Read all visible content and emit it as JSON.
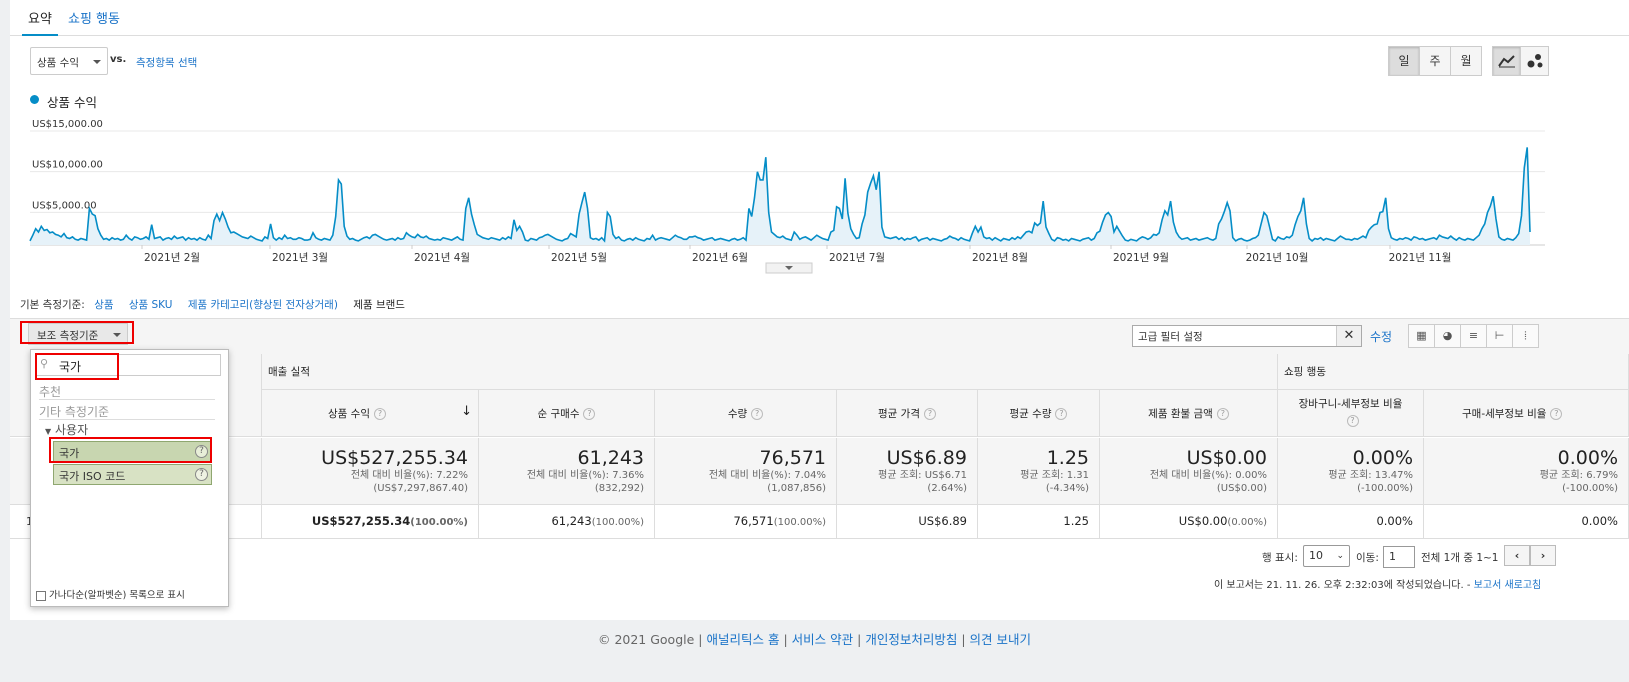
{
  "tabs": {
    "summary": "요약",
    "shopping": "쇼핑 행동"
  },
  "metric": {
    "selected": "상품 수익",
    "vs": "vs.",
    "choose": "측정항목 선택"
  },
  "period_buttons": [
    "일",
    "주",
    "월"
  ],
  "chart_data": {
    "type": "line",
    "series": [
      {
        "name": "상품 수익",
        "color": "#058dc7",
        "values": [
          500,
          1200,
          2000,
          1600,
          2300,
          1800,
          1900,
          1500,
          1600,
          1300,
          1200,
          1000,
          1400,
          900,
          800,
          1000,
          700,
          600,
          800,
          700,
          600,
          4500,
          3800,
          3600,
          2000,
          1200,
          700,
          800,
          600,
          900,
          700,
          800,
          600,
          700,
          1200,
          800,
          600,
          1000,
          900,
          700,
          800,
          1000,
          700,
          2500,
          800,
          900,
          1000,
          600,
          800,
          900,
          700,
          1100,
          800,
          900,
          1000,
          600,
          900,
          700,
          800,
          600,
          900,
          700,
          600,
          1200,
          800,
          3000,
          3800,
          3000,
          4000,
          3200,
          2200,
          1500,
          1600,
          1400,
          1200,
          1000,
          900,
          800,
          1100,
          900,
          700,
          600,
          500,
          1000,
          800,
          2600,
          900,
          600,
          900,
          700,
          1200,
          800,
          900,
          700,
          700,
          900,
          800,
          600,
          600,
          700,
          1500,
          900,
          700,
          600,
          800,
          700,
          600,
          1200,
          3500,
          8000,
          7500,
          2300,
          1100,
          700,
          800,
          600,
          500,
          700,
          900,
          1000,
          800,
          1200,
          1300,
          1100,
          900,
          700,
          600,
          700,
          800,
          600,
          900,
          700,
          800,
          1500,
          1200,
          1000,
          900,
          1300,
          1000,
          900,
          1100,
          800,
          700,
          600,
          700,
          600,
          900,
          800,
          700,
          600,
          800,
          1000,
          700,
          600,
          4500,
          5800,
          3800,
          2500,
          1300,
          1100,
          900,
          800,
          700,
          900,
          800,
          700,
          600,
          900,
          700,
          1000,
          800,
          3100,
          1800,
          2300,
          1600,
          600,
          500,
          800,
          700,
          600,
          900,
          1000,
          1200,
          1300,
          1100,
          900,
          700,
          600,
          500,
          700,
          800,
          1400,
          1200,
          1000,
          3800,
          5200,
          6500,
          4500,
          900,
          700,
          800,
          600,
          900,
          500,
          4000,
          3500,
          1300,
          800,
          1000,
          600,
          500,
          700,
          800,
          600,
          900,
          700,
          600,
          500,
          800,
          700,
          1200,
          600,
          800,
          900,
          800,
          700,
          600,
          900,
          1200,
          1000,
          900,
          700,
          700,
          1000,
          1000,
          1100,
          900,
          800,
          600,
          700,
          800,
          900,
          600,
          700,
          800,
          700,
          600,
          500,
          700,
          800,
          600,
          700,
          900,
          600,
          4500,
          3500,
          5800,
          9000,
          8000,
          8000,
          10800,
          4000,
          1600,
          1300,
          1000,
          900,
          1100,
          800,
          700,
          600,
          1600,
          1200,
          700,
          900,
          1000,
          800,
          600,
          900,
          1200,
          1000,
          800,
          700,
          600,
          1600,
          1800,
          4700,
          4500,
          3200,
          8200,
          3900,
          2000,
          1300,
          800,
          900,
          2600,
          3700,
          6500,
          7600,
          8500,
          6800,
          9000,
          2200,
          1000,
          900,
          800,
          900,
          1000,
          700,
          900,
          600,
          800,
          700,
          900,
          1000,
          500,
          700,
          800,
          900,
          600,
          800,
          700,
          600,
          500,
          700,
          800,
          1100,
          900,
          800,
          600,
          900,
          700,
          600,
          500,
          1500,
          2300,
          1600,
          2200,
          1000,
          800,
          900,
          600,
          900,
          700,
          500,
          800,
          700,
          600,
          900,
          700,
          1000,
          800,
          1200,
          1600,
          1700,
          1500,
          2700,
          2400,
          2700,
          5400,
          2200,
          1400,
          700,
          500,
          900,
          800,
          600,
          700,
          500,
          800,
          700,
          600,
          500,
          700,
          800,
          900,
          600,
          800,
          1500,
          1700,
          2800,
          3700,
          4000,
          3500,
          1600,
          2300,
          1700,
          1100,
          600,
          500,
          700,
          600,
          500,
          800,
          1000,
          900,
          700,
          900,
          1300,
          1200,
          1500,
          3100,
          4200,
          3700,
          5400,
          2800,
          1600,
          1000,
          700,
          800,
          900,
          600,
          700,
          800,
          600,
          700,
          800,
          900,
          700,
          600,
          800,
          2600,
          3200,
          4100,
          5200,
          4200,
          900,
          500,
          700,
          800,
          600,
          500,
          600,
          800,
          900,
          1200,
          2600,
          4000,
          3600,
          2200,
          700,
          500,
          1000,
          800,
          700,
          1000,
          900,
          1200,
          2500,
          3500,
          4200,
          5800,
          2600,
          800,
          500,
          800,
          700,
          900,
          600,
          800,
          700,
          600,
          500,
          800,
          1100,
          900,
          700,
          700,
          600,
          800,
          700,
          900,
          1100,
          900,
          1800,
          2200,
          2500,
          2600,
          4000,
          4100,
          5800,
          2000,
          900,
          700,
          600,
          800,
          700,
          900,
          800,
          600,
          1000,
          900,
          700,
          800,
          600,
          700,
          800,
          900,
          700,
          1200,
          1000,
          900,
          800,
          1100,
          800,
          600,
          900,
          700,
          600,
          800,
          700,
          600,
          900,
          1200,
          2000,
          2600,
          4000,
          4800,
          6000,
          3200,
          1000,
          700,
          600,
          800,
          700,
          600,
          900,
          1400,
          3600,
          9500,
          12000,
          1600
        ]
      }
    ],
    "y_ticks": [
      "US$15,000.00",
      "US$10,000.00",
      "US$5,000.00"
    ],
    "ylim": [
      0,
      15000
    ],
    "x_labels": [
      "2021년 2월",
      "2021년 3월",
      "2021년 4월",
      "2021년 5월",
      "2021년 6월",
      "2021년 7월",
      "2021년 8월",
      "2021년 9월",
      "2021년 10월",
      "2021년 11월"
    ],
    "grid": true,
    "legend": "top-left"
  },
  "dimension_bar": {
    "label": "기본 측정기준:",
    "items": [
      "상품",
      "상품 SKU",
      "제품 카테고리(향상된 전자상거래)",
      "제품 브랜드"
    ]
  },
  "secondary_dim": "보조 측정기준",
  "filter": {
    "value": "고급 필터 설정",
    "edit": "수정"
  },
  "dropdown": {
    "search_value": "국가",
    "sections": [
      "추천",
      "기타 측정기준"
    ],
    "group": "사용자",
    "items": [
      "국가",
      "국가 ISO 코드"
    ],
    "alpha_label": "가나다순(알파벳순) 목록으로 표시",
    "help": "?"
  },
  "table": {
    "group_sales": "매출 실적",
    "group_shopping": "쇼핑 행동",
    "columns": [
      "상품 수익",
      "순 구매수",
      "수량",
      "평균 가격",
      "평균 수량",
      "제품 환불 금액",
      "장바구니-세부정보 비율",
      "구매-세부정보 비율"
    ],
    "totals": [
      {
        "big": "US$527,255.34",
        "l1": "전체 대비 비율(%): 7.22%",
        "l2": "(US$7,297,867.40)"
      },
      {
        "big": "61,243",
        "l1": "전체 대비 비율(%): 7.36%",
        "l2": "(832,292)"
      },
      {
        "big": "76,571",
        "l1": "전체 대비 비율(%): 7.04%",
        "l2": "(1,087,856)"
      },
      {
        "big": "US$6.89",
        "l1": "평균 조회: US$6.71",
        "l2": "(2.64%)"
      },
      {
        "big": "1.25",
        "l1": "평균 조회: 1.31",
        "l2": "(-4.34%)"
      },
      {
        "big": "US$0.00",
        "l1": "전체 대비 비율(%): 0.00%",
        "l2": "(US$0.00)"
      },
      {
        "big": "0.00%",
        "l1": "평균 조회: 13.47%",
        "l2": "(-100.00%)"
      },
      {
        "big": "0.00%",
        "l1": "평균 조회: 6.79%",
        "l2": "(-100.00%)"
      }
    ],
    "row": {
      "index": "1.",
      "cells": [
        {
          "v": "US$527,255.34",
          "p": "(100.00%)"
        },
        {
          "v": "61,243",
          "p": "(100.00%)"
        },
        {
          "v": "76,571",
          "p": "(100.00%)"
        },
        {
          "v": "US$6.89",
          "p": ""
        },
        {
          "v": "1.25",
          "p": ""
        },
        {
          "v": "US$0.00",
          "p": "(0.00%)"
        },
        {
          "v": "0.00%",
          "p": ""
        },
        {
          "v": "0.00%",
          "p": ""
        }
      ]
    }
  },
  "pagination": {
    "rows_label": "행 표시:",
    "rows_value": "10",
    "goto_label": "이동:",
    "goto_value": "1",
    "range": "전체 1개 중 1~1"
  },
  "report": {
    "created": "이 보고서는 21. 11. 26. 오후 2:32:03에 작성되었습니다. -",
    "refresh": "보고서 새로고침"
  },
  "footer": {
    "copyright": "© 2021 Google",
    "links": [
      "애널리틱스 홈",
      "서비스 약관",
      "개인정보처리방침",
      "의견 보내기"
    ],
    "sep": "|"
  }
}
